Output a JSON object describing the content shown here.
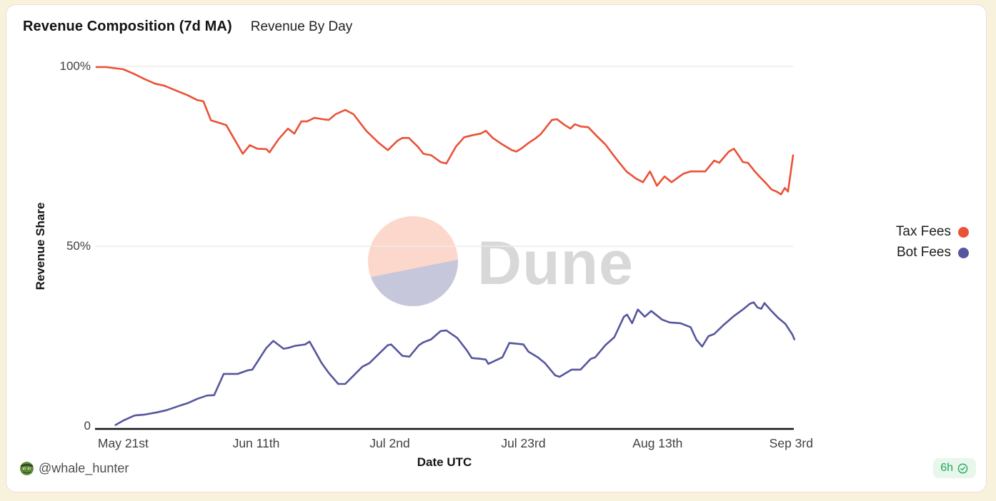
{
  "header": {
    "title": "Revenue Composition (7d MA)",
    "subtitle": "Revenue By Day"
  },
  "chart_data": {
    "type": "line",
    "title": "Revenue Composition (7d MA)",
    "subtitle": "Revenue By Day",
    "xlabel": "Date UTC",
    "ylabel": "Revenue Share",
    "ylim": [
      0,
      100
    ],
    "grid": "horizontal gridlines at 50% and 100%",
    "legend_position": "right",
    "x_unit": "day offset from May 17 (UTC)",
    "y_ticks": [
      {
        "label": "100%",
        "value": 100
      },
      {
        "label": "50%",
        "value": 50
      },
      {
        "label": "0",
        "value": 0
      }
    ],
    "x_ticks": [
      {
        "label": "May 21st",
        "day": 4.2
      },
      {
        "label": "Jun 11th",
        "day": 25.1
      },
      {
        "label": "Jul 2nd",
        "day": 46.1
      },
      {
        "label": "Jul 23rd",
        "day": 67.1
      },
      {
        "label": "Aug 13th",
        "day": 88.2
      },
      {
        "label": "Sep 3rd",
        "day": 109.2
      }
    ],
    "series": [
      {
        "name": "Tax Fees",
        "color": "#ea5137",
        "points": [
          [
            0,
            99.8
          ],
          [
            1.5,
            99.8
          ],
          [
            2.8,
            99.5
          ],
          [
            4.2,
            99.2
          ],
          [
            5.8,
            98
          ],
          [
            7.5,
            96.5
          ],
          [
            9.2,
            95.2
          ],
          [
            10.7,
            94.6
          ],
          [
            12.9,
            93
          ],
          [
            14.3,
            92
          ],
          [
            15.9,
            90.6
          ],
          [
            16.8,
            90.3
          ],
          [
            18,
            85
          ],
          [
            19.3,
            84.3
          ],
          [
            20.4,
            83.7
          ],
          [
            21.7,
            79.7
          ],
          [
            23,
            75.7
          ],
          [
            24.1,
            78.1
          ],
          [
            25.3,
            77.1
          ],
          [
            26.7,
            77
          ],
          [
            27.2,
            76.1
          ],
          [
            28.6,
            79.7
          ],
          [
            30.1,
            82.7
          ],
          [
            31.1,
            81.3
          ],
          [
            32.2,
            84.7
          ],
          [
            33.1,
            84.7
          ],
          [
            34.3,
            85.7
          ],
          [
            35.6,
            85.3
          ],
          [
            36.5,
            85.1
          ],
          [
            37.6,
            86.7
          ],
          [
            39.1,
            87.9
          ],
          [
            40.4,
            86.7
          ],
          [
            42.4,
            82.1
          ],
          [
            44.4,
            78.7
          ],
          [
            45.8,
            76.7
          ],
          [
            47.3,
            79.3
          ],
          [
            48.1,
            80.1
          ],
          [
            49.1,
            80.1
          ],
          [
            50.5,
            77.7
          ],
          [
            51.4,
            75.7
          ],
          [
            52.6,
            75.3
          ],
          [
            54.1,
            73.4
          ],
          [
            55,
            73
          ],
          [
            56.5,
            77.7
          ],
          [
            57.8,
            80.3
          ],
          [
            59.2,
            80.9
          ],
          [
            60.4,
            81.3
          ],
          [
            61.2,
            82.1
          ],
          [
            62.3,
            80.1
          ],
          [
            63.8,
            78.3
          ],
          [
            65.3,
            76.7
          ],
          [
            66,
            76.3
          ],
          [
            66.9,
            77.3
          ],
          [
            67.9,
            78.7
          ],
          [
            69.1,
            80.1
          ],
          [
            69.8,
            81.1
          ],
          [
            70.7,
            83.1
          ],
          [
            71.6,
            85.1
          ],
          [
            72.4,
            85.3
          ],
          [
            73.6,
            83.7
          ],
          [
            74.5,
            82.7
          ],
          [
            75.2,
            83.9
          ],
          [
            76.1,
            83.3
          ],
          [
            77.3,
            83.1
          ],
          [
            78.6,
            80.7
          ],
          [
            80,
            78.3
          ],
          [
            81.1,
            75.7
          ],
          [
            82.2,
            73.2
          ],
          [
            83.3,
            70.8
          ],
          [
            84.8,
            68.8
          ],
          [
            85.9,
            67.8
          ],
          [
            87,
            70.8
          ],
          [
            88.1,
            66.8
          ],
          [
            89.3,
            69.4
          ],
          [
            90.4,
            67.8
          ],
          [
            91.5,
            69.2
          ],
          [
            92.3,
            70.2
          ],
          [
            93.4,
            70.8
          ],
          [
            94.6,
            70.8
          ],
          [
            95.7,
            70.8
          ],
          [
            97.1,
            73.8
          ],
          [
            97.9,
            73.2
          ],
          [
            99.4,
            76.3
          ],
          [
            100.2,
            77.1
          ],
          [
            101.1,
            74.8
          ],
          [
            101.6,
            73.4
          ],
          [
            102.4,
            73.2
          ],
          [
            103.3,
            71.2
          ],
          [
            104.2,
            69.4
          ],
          [
            105.3,
            67.4
          ],
          [
            106.1,
            65.8
          ],
          [
            106.9,
            65.2
          ],
          [
            107.6,
            64.4
          ],
          [
            108.2,
            66.2
          ],
          [
            108.7,
            65.2
          ],
          [
            109.5,
            75.3
          ]
        ]
      },
      {
        "name": "Bot Fees",
        "color": "#55569d",
        "points": [
          [
            3,
            0.3
          ],
          [
            4.3,
            1.6
          ],
          [
            5.8,
            2.8
          ],
          [
            6.2,
            3
          ],
          [
            7.6,
            3.2
          ],
          [
            9.5,
            3.8
          ],
          [
            11,
            4.4
          ],
          [
            13.3,
            5.8
          ],
          [
            14.4,
            6.4
          ],
          [
            15.9,
            7.6
          ],
          [
            17.4,
            8.5
          ],
          [
            18.5,
            8.6
          ],
          [
            20,
            14.5
          ],
          [
            22.2,
            14.5
          ],
          [
            23.8,
            15.5
          ],
          [
            24.5,
            15.7
          ],
          [
            26.7,
            21.7
          ],
          [
            27.8,
            23.7
          ],
          [
            29.4,
            21.5
          ],
          [
            30.1,
            21.7
          ],
          [
            31.2,
            22.3
          ],
          [
            32.8,
            22.7
          ],
          [
            33.5,
            23.5
          ],
          [
            34.3,
            21
          ],
          [
            35.4,
            17.5
          ],
          [
            36.5,
            14.8
          ],
          [
            38,
            11.7
          ],
          [
            39.1,
            11.7
          ],
          [
            41.8,
            16.5
          ],
          [
            42.9,
            17.5
          ],
          [
            45.8,
            22.5
          ],
          [
            46.3,
            22.7
          ],
          [
            48.1,
            19.5
          ],
          [
            49.2,
            19.3
          ],
          [
            50.7,
            22.5
          ],
          [
            51.4,
            23.3
          ],
          [
            52.6,
            24.1
          ],
          [
            54.1,
            26.4
          ],
          [
            55,
            26.6
          ],
          [
            56.7,
            24.5
          ],
          [
            58.2,
            21.1
          ],
          [
            59,
            18.9
          ],
          [
            60.4,
            18.7
          ],
          [
            61.2,
            18.5
          ],
          [
            61.6,
            17.3
          ],
          [
            63.8,
            19.1
          ],
          [
            64.9,
            23.1
          ],
          [
            67.1,
            22.7
          ],
          [
            67.9,
            20.7
          ],
          [
            69.4,
            19.1
          ],
          [
            70.5,
            17.5
          ],
          [
            72.1,
            14.1
          ],
          [
            72.8,
            13.7
          ],
          [
            74.7,
            15.7
          ],
          [
            76.1,
            15.7
          ],
          [
            77.7,
            18.7
          ],
          [
            78.4,
            19.1
          ],
          [
            80,
            22.5
          ],
          [
            81.4,
            24.7
          ],
          [
            82.9,
            30.4
          ],
          [
            83.4,
            31
          ],
          [
            84.2,
            28.6
          ],
          [
            85.1,
            32.4
          ],
          [
            86.2,
            30.4
          ],
          [
            87.2,
            32
          ],
          [
            88.9,
            29.6
          ],
          [
            90.1,
            28.8
          ],
          [
            91.8,
            28.6
          ],
          [
            93.4,
            27.5
          ],
          [
            94.3,
            24
          ],
          [
            95.2,
            22.1
          ],
          [
            96.2,
            25
          ],
          [
            97.1,
            25.6
          ],
          [
            98.5,
            28
          ],
          [
            100.2,
            30.6
          ],
          [
            101.6,
            32.4
          ],
          [
            102.7,
            34
          ],
          [
            103.3,
            34.4
          ],
          [
            103.9,
            33
          ],
          [
            104.5,
            32.6
          ],
          [
            105,
            34.2
          ],
          [
            106.1,
            32
          ],
          [
            107.2,
            30
          ],
          [
            108.3,
            28.4
          ],
          [
            109.4,
            25.4
          ],
          [
            109.7,
            24.1
          ]
        ]
      }
    ]
  },
  "watermark": {
    "text": "Dune",
    "circle_top_color": "#fcd8cc",
    "circle_bottom_color": "#c7c7db",
    "text_color": "#d8d8d8"
  },
  "footer": {
    "author_handle": "@whale_hunter",
    "refresh_age": "6h"
  },
  "colors": {
    "page_background": "#f8f1dc",
    "card_background": "#ffffff",
    "card_border": "#eedcd5",
    "tax_fees": "#ea5137",
    "bot_fees": "#55569d",
    "badge_background": "#e7f7ec",
    "badge_text": "#22a559",
    "axis": "#111111",
    "tick_text": "#3f3f3f",
    "gridline": "#ececec"
  }
}
